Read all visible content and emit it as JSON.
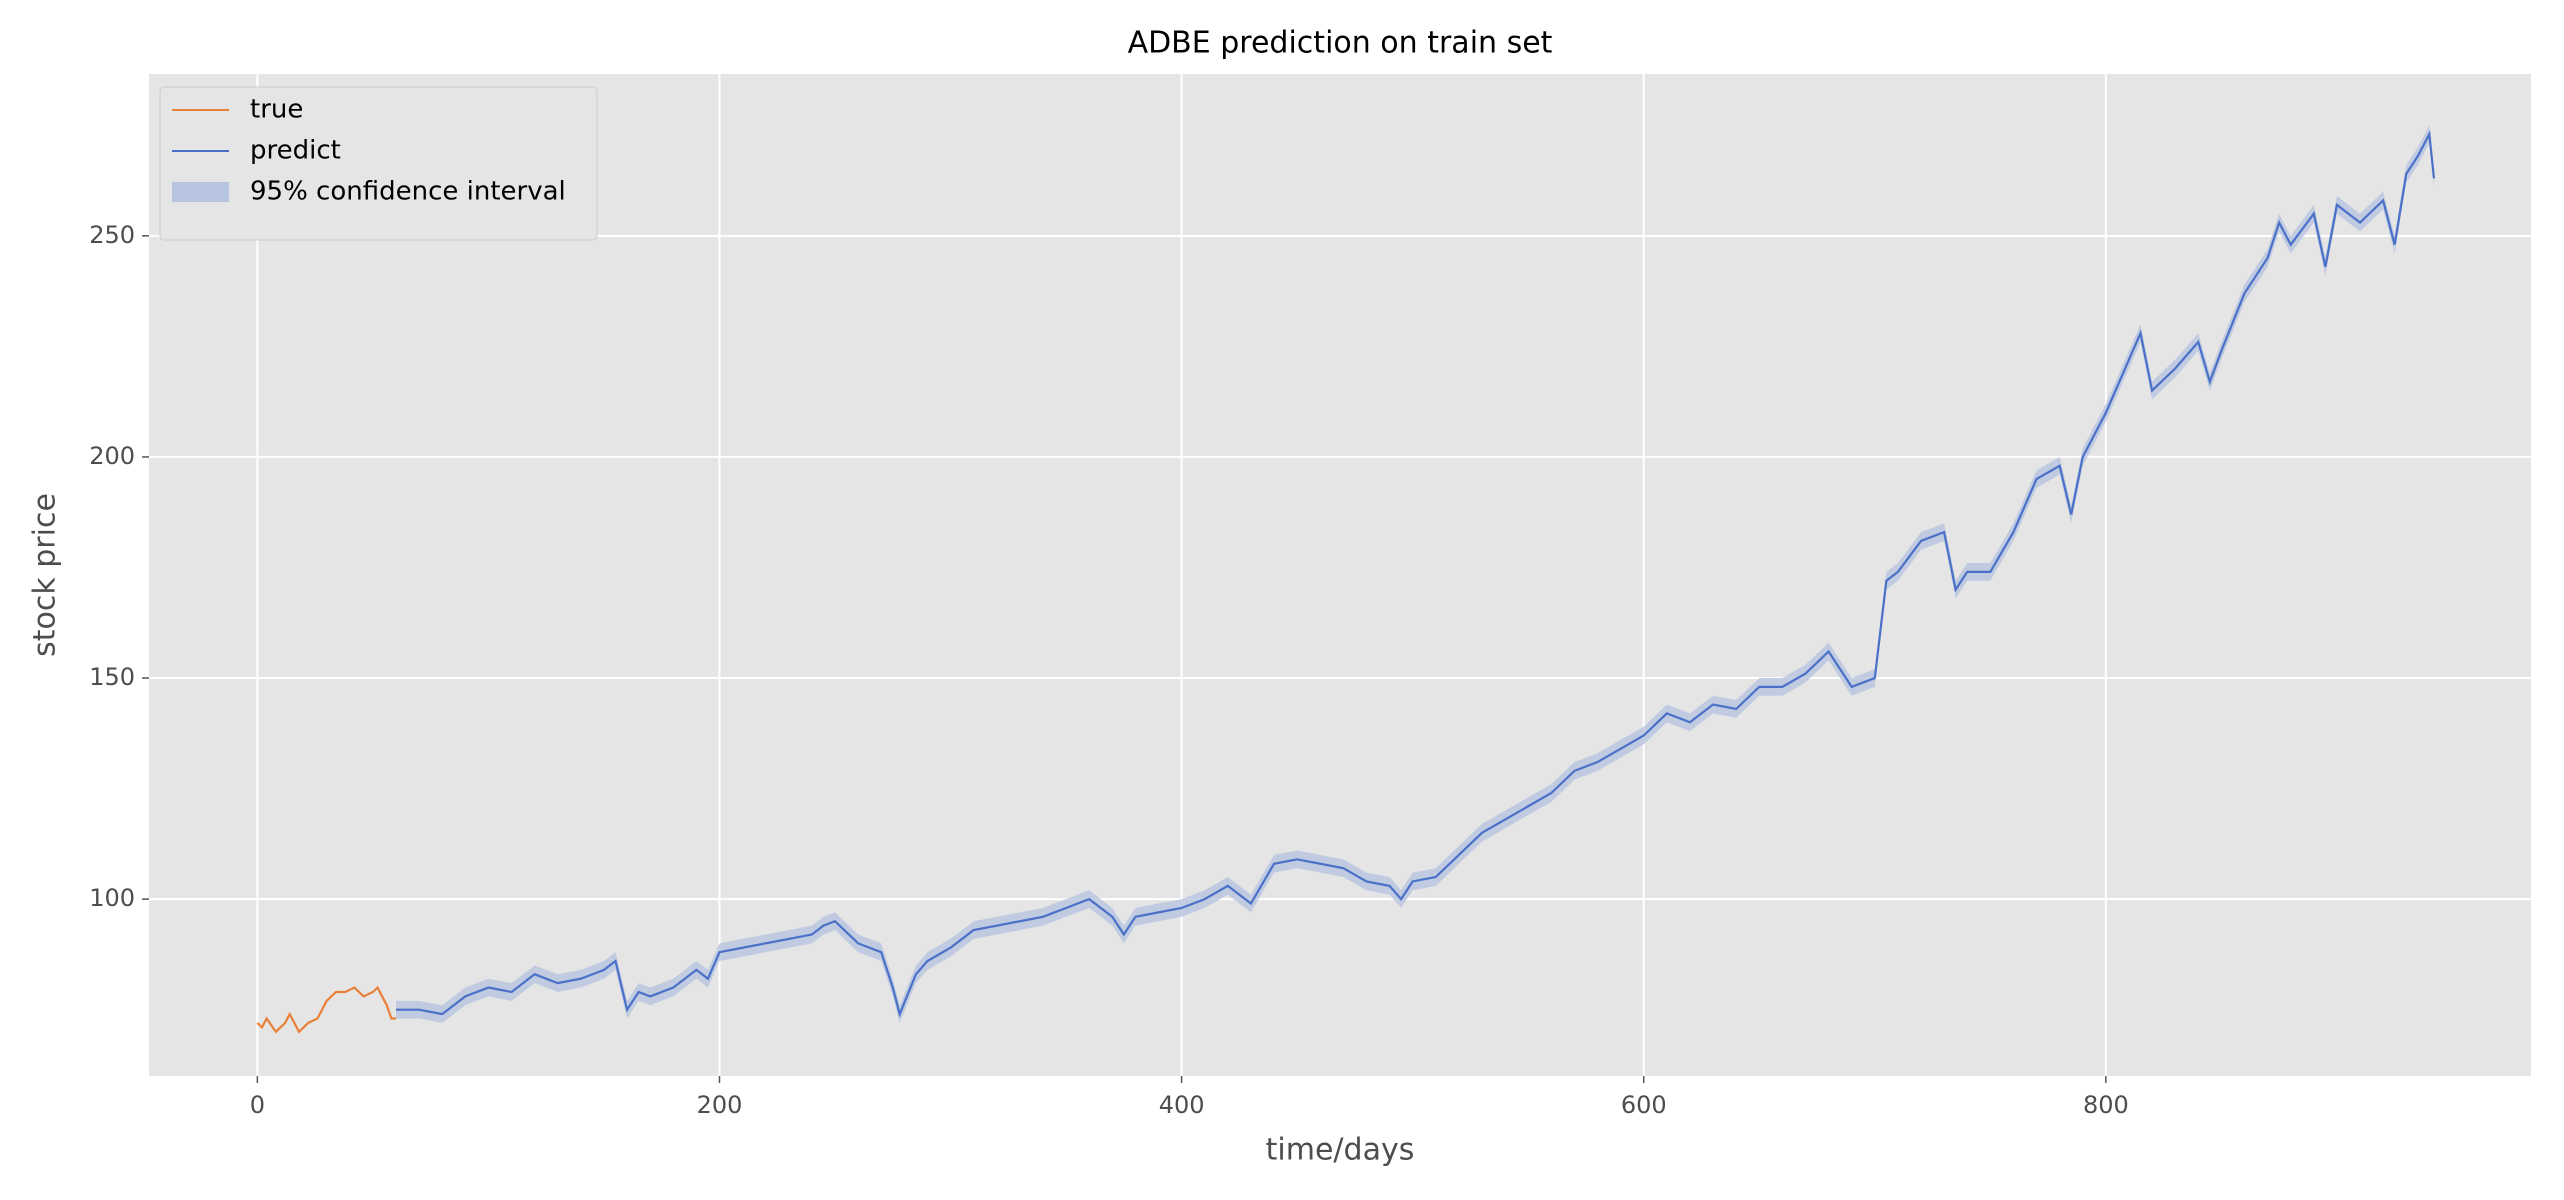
{
  "chart_data": {
    "type": "line",
    "title": "ADBE prediction on train set",
    "x_label": "time/days",
    "y_label": "stock price",
    "xlim": [
      -46.9,
      984
    ],
    "ylim": [
      60,
      286.6
    ],
    "xticks": [
      0,
      200,
      400,
      600,
      800
    ],
    "yticks": [
      100,
      150,
      200,
      250
    ],
    "grid": true,
    "legend": "upper left",
    "series": [
      {
        "name": "true",
        "color": "#e8803a",
        "x": [
          0,
          2,
          4,
          8,
          12,
          14,
          18,
          22,
          26,
          30,
          34,
          38,
          42,
          46,
          50,
          52,
          56,
          58,
          60
        ],
        "values": [
          72,
          71,
          73,
          70,
          72,
          74,
          70,
          72,
          73,
          77,
          79,
          79,
          80,
          78,
          79,
          80,
          76,
          73,
          73
        ]
      },
      {
        "name": "predict",
        "color": "#4a70c8",
        "x": [
          60,
          70,
          80,
          90,
          100,
          110,
          120,
          130,
          140,
          150,
          155,
          160,
          165,
          170,
          180,
          190,
          195,
          200,
          210,
          220,
          230,
          240,
          245,
          250,
          260,
          270,
          275,
          278,
          285,
          290,
          300,
          310,
          320,
          330,
          340,
          350,
          360,
          370,
          375,
          380,
          390,
          400,
          410,
          420,
          430,
          440,
          450,
          460,
          470,
          480,
          490,
          495,
          500,
          510,
          520,
          530,
          540,
          550,
          560,
          570,
          580,
          590,
          600,
          610,
          620,
          630,
          640,
          650,
          660,
          670,
          680,
          690,
          700,
          705,
          710,
          720,
          730,
          735,
          740,
          750,
          760,
          770,
          780,
          785,
          790,
          800,
          810,
          815,
          820,
          830,
          840,
          845,
          850,
          860,
          870,
          875,
          880,
          890,
          895,
          900,
          910,
          920,
          925,
          930,
          935,
          940,
          942
        ],
        "values": [
          75,
          75,
          74,
          78,
          80,
          79,
          83,
          81,
          82,
          84,
          86,
          75,
          79,
          78,
          80,
          84,
          82,
          88,
          89,
          90,
          91,
          92,
          94,
          95,
          90,
          88,
          80,
          74,
          83,
          86,
          89,
          93,
          94,
          95,
          96,
          98,
          100,
          96,
          92,
          96,
          97,
          98,
          100,
          103,
          99,
          108,
          109,
          108,
          107,
          104,
          103,
          100,
          104,
          105,
          110,
          115,
          118,
          121,
          124,
          129,
          131,
          134,
          137,
          142,
          140,
          144,
          143,
          148,
          148,
          151,
          156,
          148,
          150,
          172,
          174,
          181,
          183,
          170,
          174,
          174,
          183,
          195,
          198,
          187,
          200,
          210,
          222,
          228,
          215,
          220,
          226,
          217,
          224,
          237,
          245,
          253,
          248,
          255,
          243,
          257,
          253,
          258,
          248,
          264,
          268,
          273,
          263
        ],
        "interval": {
          "name": "95% confidence interval",
          "color": "#b7c4e0",
          "halfwidth": 2
        }
      }
    ]
  }
}
